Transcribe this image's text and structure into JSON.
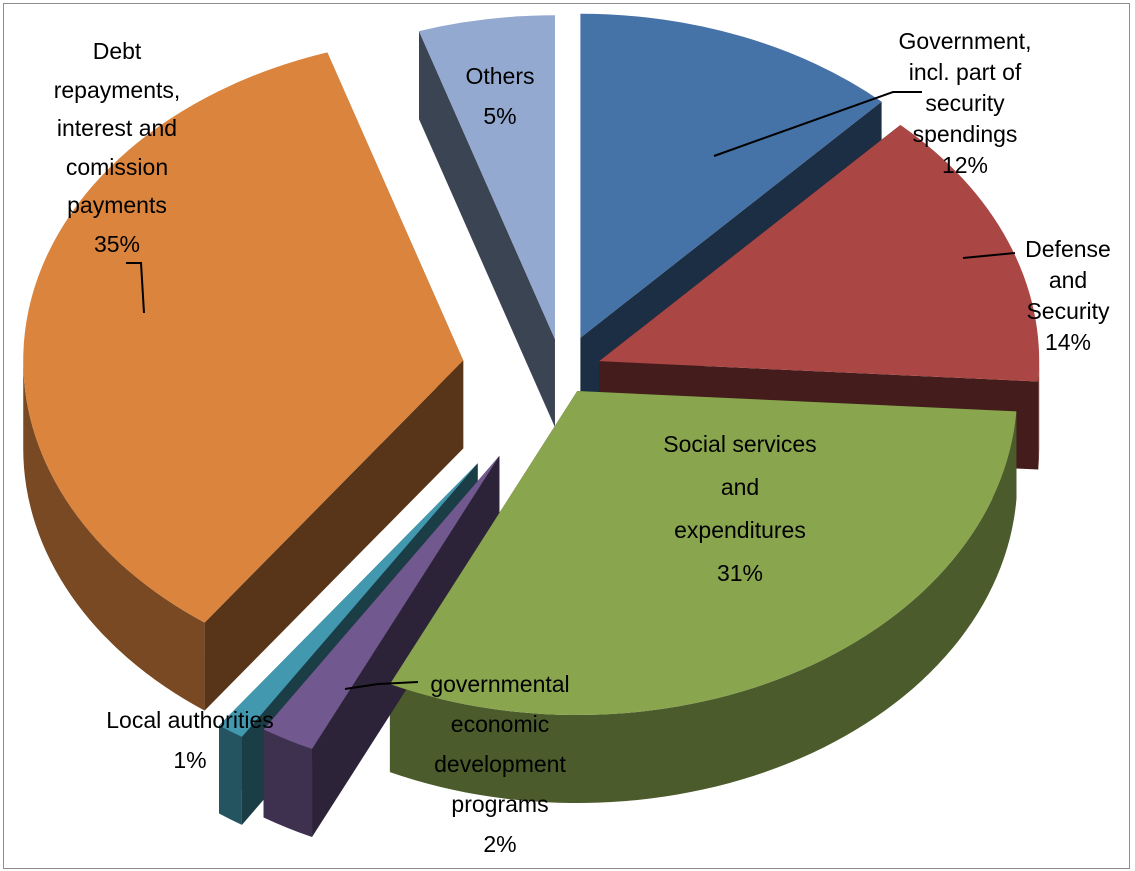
{
  "chart_data": {
    "type": "pie",
    "title": "",
    "style": "3d-exploded",
    "slices": [
      {
        "label": "Government, incl. part of security spendings",
        "lines": [
          "Government,",
          "incl. part of",
          "security",
          "spendings"
        ],
        "percent_label": "12%",
        "value": 12,
        "color": "#4572A7"
      },
      {
        "label": "Defense and Security",
        "lines": [
          "Defense",
          "and",
          "Security"
        ],
        "percent_label": "14%",
        "value": 14,
        "color": "#AA4643"
      },
      {
        "label": "Social services and expenditures",
        "lines": [
          "Social services",
          "and",
          "expenditures"
        ],
        "percent_label": "31%",
        "value": 31,
        "color": "#89A54E"
      },
      {
        "label": "governmental economic development programs",
        "lines": [
          "governmental",
          "economic",
          "development",
          "programs"
        ],
        "percent_label": "2%",
        "value": 2,
        "color": "#71588F"
      },
      {
        "label": "Local authorities",
        "lines": [
          "Local authorities"
        ],
        "percent_label": "1%",
        "value": 1,
        "color": "#4198AF"
      },
      {
        "label": "Debt repayments, interest and comission payments",
        "lines": [
          "Debt",
          "repayments,",
          "interest and",
          "comission",
          "payments"
        ],
        "percent_label": "35%",
        "value": 35,
        "color": "#DB843D"
      },
      {
        "label": "Others",
        "lines": [
          "Others"
        ],
        "percent_label": "5%",
        "value": 5,
        "color": "#93A9CF"
      }
    ]
  }
}
